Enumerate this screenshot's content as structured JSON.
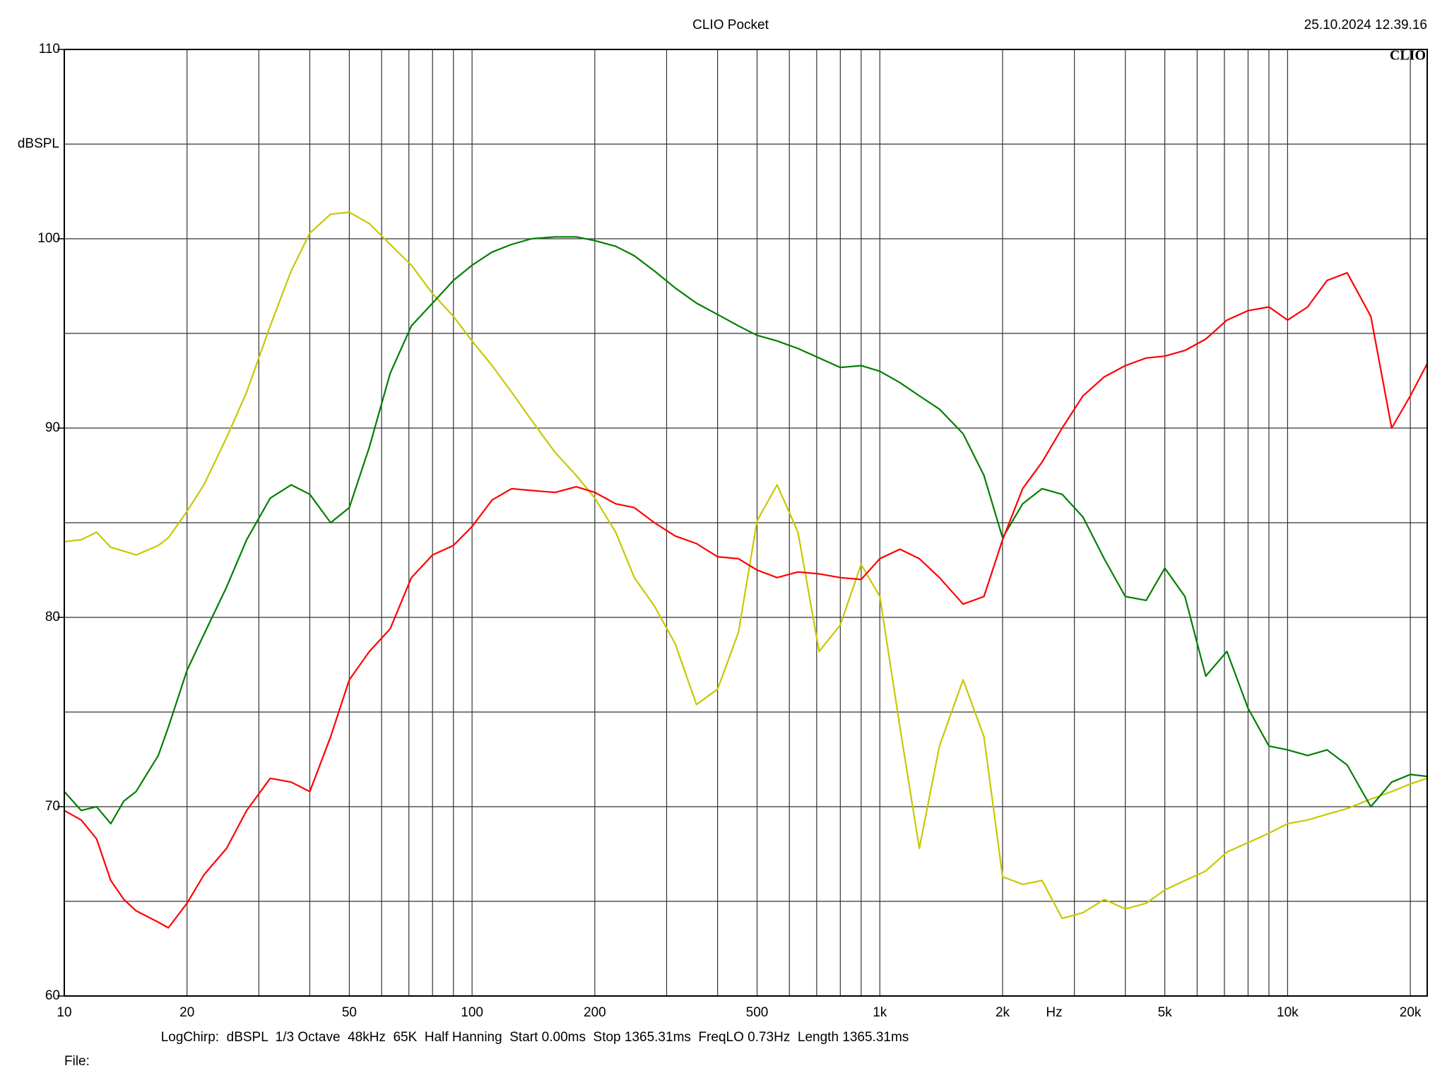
{
  "chart_data": {
    "type": "line",
    "title": "CLIO Pocket",
    "timestamp": "25.10.2024 12.39.16",
    "logo": "CLIO",
    "y_label": "dBSPL",
    "x_unit": "Hz",
    "footer": "LogChirp:  dBSPL  1/3 Octave  48kHz  65K  Half Hanning  Start 0.00ms  Stop 1365.31ms  FreqLO 0.73Hz  Length 1365.31ms",
    "file_label": "File:",
    "xscale": "log",
    "grid": true,
    "xlim": [
      10,
      22000
    ],
    "ylim": [
      60,
      110
    ],
    "xticks": [
      10,
      20,
      50,
      100,
      200,
      500,
      {
        "value": 1000,
        "label": "1k"
      },
      {
        "value": 2000,
        "label": "2k"
      },
      {
        "value": 5000,
        "label": "5k"
      },
      {
        "value": 10000,
        "label": "10k"
      },
      {
        "value": 20000,
        "label": "20k"
      }
    ],
    "x_minor_grid": [
      30,
      40,
      60,
      70,
      80,
      90,
      300,
      400,
      600,
      700,
      800,
      900,
      3000,
      4000,
      6000,
      7000,
      8000,
      9000
    ],
    "yticks": [
      60,
      70,
      80,
      90,
      100,
      110
    ],
    "y_minor_grid": [
      65,
      75,
      85,
      95,
      105
    ],
    "x": [
      10,
      11,
      12,
      13,
      14,
      15,
      17,
      18,
      20,
      22,
      25,
      28,
      32,
      36,
      40,
      45,
      50,
      56,
      63,
      71,
      80,
      90,
      100,
      112,
      125,
      140,
      160,
      180,
      200,
      225,
      250,
      280,
      315,
      355,
      400,
      450,
      500,
      560,
      630,
      710,
      800,
      900,
      1000,
      1120,
      1250,
      1400,
      1600,
      1800,
      2000,
      2240,
      2500,
      2800,
      3150,
      3550,
      4000,
      4500,
      5000,
      5600,
      6300,
      7100,
      8000,
      9000,
      10000,
      11200,
      12500,
      14000,
      16000,
      18000,
      20000,
      22000
    ],
    "series": [
      {
        "color": "#c8c800",
        "values": [
          84.0,
          84.1,
          84.5,
          83.7,
          83.5,
          83.3,
          83.8,
          84.2,
          85.6,
          87.0,
          89.5,
          91.9,
          95.4,
          98.3,
          100.3,
          101.3,
          101.4,
          100.8,
          99.7,
          98.6,
          97.1,
          95.9,
          94.6,
          93.3,
          91.9,
          90.4,
          88.7,
          87.5,
          86.3,
          84.5,
          82.1,
          80.6,
          78.6,
          75.4,
          76.2,
          79.2,
          85.1,
          87.0,
          84.5,
          78.2,
          79.6,
          82.8,
          81.1,
          74.2,
          67.8,
          73.2,
          76.7,
          73.7,
          66.3,
          65.9,
          66.1,
          64.1,
          64.4,
          65.1,
          64.6,
          64.9,
          65.6,
          66.1,
          66.6,
          67.6,
          68.1,
          68.6,
          69.1,
          69.3,
          69.6,
          69.9,
          70.4,
          70.8,
          71.2,
          71.5
        ]
      },
      {
        "color": "#007f00",
        "values": [
          70.8,
          69.8,
          70.0,
          69.1,
          70.3,
          70.8,
          72.7,
          74.2,
          77.2,
          79.1,
          81.6,
          84.1,
          86.3,
          87.0,
          86.5,
          85.0,
          85.8,
          89.0,
          92.9,
          95.4,
          96.6,
          97.8,
          98.6,
          99.3,
          99.7,
          100.0,
          100.1,
          100.1,
          99.9,
          99.6,
          99.1,
          98.3,
          97.4,
          96.6,
          96.0,
          95.4,
          94.9,
          94.6,
          94.2,
          93.7,
          93.2,
          93.3,
          93.0,
          92.4,
          91.7,
          91.0,
          89.7,
          87.5,
          84.2,
          86.0,
          86.8,
          86.5,
          85.3,
          83.1,
          81.1,
          80.9,
          82.6,
          81.1,
          76.9,
          78.2,
          75.2,
          73.2,
          73.0,
          72.7,
          73.0,
          72.2,
          70.0,
          71.3,
          71.7,
          71.6
        ]
      },
      {
        "color": "#ff0000",
        "values": [
          69.8,
          69.3,
          68.3,
          66.1,
          65.1,
          64.5,
          63.9,
          63.6,
          64.9,
          66.4,
          67.8,
          69.8,
          71.5,
          71.3,
          70.8,
          73.7,
          76.7,
          78.2,
          79.4,
          82.1,
          83.3,
          83.8,
          84.8,
          86.2,
          86.8,
          86.7,
          86.6,
          86.9,
          86.6,
          86.0,
          85.8,
          85.0,
          84.3,
          83.9,
          83.2,
          83.1,
          82.5,
          82.1,
          82.4,
          82.3,
          82.1,
          82.0,
          83.1,
          83.6,
          83.1,
          82.1,
          80.7,
          81.1,
          84.1,
          86.8,
          88.2,
          90.0,
          91.7,
          92.7,
          93.3,
          93.7,
          93.8,
          94.1,
          94.7,
          95.7,
          96.2,
          96.4,
          95.7,
          96.4,
          97.8,
          98.2,
          95.9,
          90.0,
          91.7,
          93.4
        ]
      }
    ]
  }
}
